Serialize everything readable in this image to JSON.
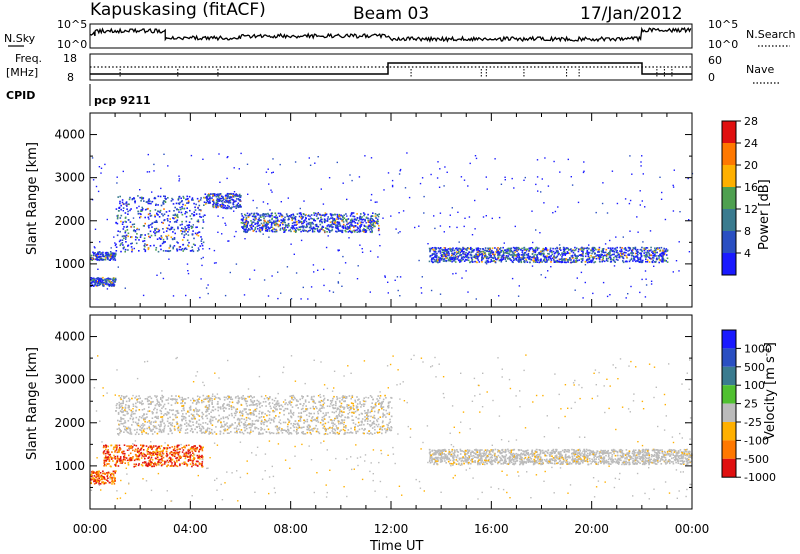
{
  "header": {
    "site": "Kapuskasing (fitACF)",
    "beam": "Beam 03",
    "date": "17/Jan/2012"
  },
  "noise_panel": {
    "left_label": "N.Sky",
    "right_label": "N.Search",
    "left_ticks": [
      "10^5",
      "10^0"
    ],
    "right_ticks": [
      "10^5",
      "10^0"
    ]
  },
  "freq_panel": {
    "left_label": "Freq.",
    "left_unit": "[MHz]",
    "right_label": "Nave",
    "left_ticks": [
      "18",
      "8"
    ],
    "right_ticks": [
      "60",
      "0"
    ]
  },
  "cpid": {
    "label": "CPID",
    "program": "pcp 9211"
  },
  "chart_data": [
    {
      "type": "heatmap",
      "title": "",
      "xlabel": "Time UT",
      "ylabel": "Slant Range [km]",
      "xlim": [
        "00:00",
        "24:00"
      ],
      "ylim": [
        0,
        4500
      ],
      "x_ticks": [
        "00:00",
        "04:00",
        "08:00",
        "12:00",
        "16:00",
        "20:00",
        "00:00"
      ],
      "y_ticks": [
        1000,
        2000,
        3000,
        4000
      ],
      "colorbar": {
        "label": "Power [dB]",
        "ticks": [
          4,
          8,
          12,
          16,
          20,
          24,
          28
        ],
        "colors": [
          "#1a1aff",
          "#2a4fc2",
          "#3a7b8f",
          "#4fa050",
          "#ffb000",
          "#ff7800",
          "#e01010"
        ]
      },
      "echo_bands": [
        {
          "start": "00:00",
          "end": "01:00",
          "range_km": [
            1100,
            1300
          ]
        },
        {
          "start": "00:00",
          "end": "01:00",
          "range_km": [
            500,
            700
          ]
        },
        {
          "start": "01:00",
          "end": "04:30",
          "range_km": [
            1300,
            2600
          ]
        },
        {
          "start": "04:30",
          "end": "06:00",
          "range_km": [
            2300,
            2650
          ]
        },
        {
          "start": "06:00",
          "end": "11:30",
          "range_km": [
            1750,
            2200
          ]
        },
        {
          "start": "13:30",
          "end": "23:00",
          "range_km": [
            1050,
            1400
          ]
        }
      ]
    },
    {
      "type": "heatmap",
      "title": "",
      "xlabel": "Time UT",
      "ylabel": "Slant Range [km]",
      "xlim": [
        "00:00",
        "24:00"
      ],
      "ylim": [
        0,
        4500
      ],
      "x_ticks": [
        "00:00",
        "04:00",
        "08:00",
        "12:00",
        "16:00",
        "20:00",
        "00:00"
      ],
      "y_ticks": [
        1000,
        2000,
        3000,
        4000
      ],
      "colorbar": {
        "label": "Velocity [m s^-1]",
        "ticks": [
          1000,
          500,
          100,
          25,
          -25,
          -100,
          -500,
          -1000
        ],
        "colors": [
          "#1a1aff",
          "#2a4fc2",
          "#3a7b8f",
          "#50c030",
          "#bbbbbb",
          "#ffb000",
          "#ff7800",
          "#e01010"
        ]
      },
      "echo_bands": [
        {
          "start": "00:00",
          "end": "01:00",
          "range_km": [
            600,
            900
          ],
          "velocity": "toward"
        },
        {
          "start": "00:30",
          "end": "04:30",
          "range_km": [
            1000,
            1500
          ],
          "velocity": "toward"
        },
        {
          "start": "01:00",
          "end": "12:00",
          "range_km": [
            1750,
            2650
          ],
          "velocity": "ground scatter"
        },
        {
          "start": "13:30",
          "end": "24:00",
          "range_km": [
            1050,
            1400
          ],
          "velocity": "ground scatter"
        }
      ]
    }
  ]
}
